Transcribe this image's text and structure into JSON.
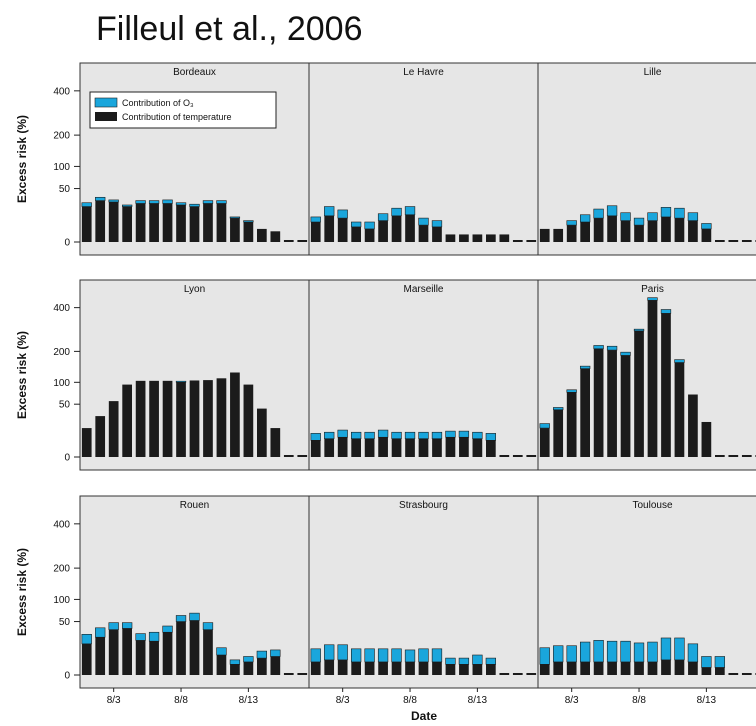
{
  "page": {
    "title": "Filleul et al., 2006"
  },
  "colors": {
    "ozone": "#1aa6dc",
    "temperature": "#1b1b1b",
    "panel_bg": "#e6e6e6",
    "border": "#333333"
  },
  "chart_data": {
    "type": "bar",
    "stacked": true,
    "xlabel": "Date",
    "ylabel": "Excess risk (%)",
    "y_ticks": [
      0,
      50,
      100,
      200,
      400
    ],
    "y_scale": "square-root",
    "ylim": [
      0,
      500
    ],
    "days": [
      "8/1",
      "8/2",
      "8/3",
      "8/4",
      "8/5",
      "8/6",
      "8/7",
      "8/8",
      "8/9",
      "8/10",
      "8/11",
      "8/12",
      "8/13",
      "8/14",
      "8/15",
      "8/16",
      "8/17"
    ],
    "x_tick_labels": [
      "8/3",
      "8/8",
      "8/13"
    ],
    "legend": [
      "Contribution of O₃",
      "Contribution of temperature"
    ],
    "panels": [
      {
        "city": "Bordeaux",
        "temperature": [
          22,
          30,
          28,
          22,
          26,
          26,
          26,
          24,
          22,
          26,
          26,
          10,
          7,
          3,
          2,
          0,
          0
        ],
        "ozone": [
          5,
          5,
          3,
          2,
          4,
          4,
          5,
          3,
          3,
          4,
          4,
          1,
          1,
          0,
          0,
          0,
          0
        ]
      },
      {
        "city": "Le Havre",
        "temperature": [
          7,
          12,
          10,
          4,
          3,
          8,
          12,
          13,
          5,
          4,
          1,
          1,
          1,
          1,
          1,
          0,
          0
        ],
        "ozone": [
          4,
          10,
          8,
          3,
          4,
          6,
          8,
          9,
          5,
          4,
          0,
          0,
          0,
          0,
          0,
          0,
          0
        ]
      },
      {
        "city": "Lille",
        "temperature": [
          3,
          3,
          5,
          7,
          10,
          12,
          8,
          5,
          8,
          11,
          10,
          8,
          3,
          0,
          0,
          0,
          0
        ],
        "ozone": [
          0,
          0,
          3,
          6,
          9,
          11,
          7,
          5,
          7,
          10,
          10,
          7,
          3,
          0,
          0,
          0,
          0
        ]
      },
      {
        "city": "Lyon",
        "temperature": [
          15,
          30,
          56,
          94,
          104,
          104,
          104,
          100,
          105,
          106,
          111,
          128,
          94,
          42,
          15,
          0,
          0
        ],
        "ozone": [
          0,
          0,
          0,
          0,
          0,
          0,
          0,
          3,
          0,
          0,
          0,
          0,
          0,
          0,
          0,
          0,
          0
        ]
      },
      {
        "city": "Marseille",
        "temperature": [
          5,
          6,
          7,
          6,
          6,
          7,
          6,
          6,
          6,
          6,
          7,
          7,
          6,
          5,
          0,
          0,
          0
        ],
        "ozone": [
          5,
          5,
          6,
          5,
          5,
          6,
          5,
          5,
          5,
          5,
          5,
          5,
          5,
          5,
          0,
          0,
          0
        ]
      },
      {
        "city": "Paris",
        "temperature": [
          15,
          40,
          75,
          140,
          210,
          205,
          185,
          285,
          440,
          370,
          160,
          70,
          22,
          0,
          0,
          0,
          0
        ],
        "ozone": [
          5,
          4,
          6,
          8,
          13,
          15,
          12,
          8,
          15,
          20,
          10,
          0,
          0,
          0,
          0,
          0,
          0
        ]
      },
      {
        "city": "Rouen",
        "temperature": [
          17,
          25,
          36,
          38,
          21,
          20,
          32,
          50,
          52,
          36,
          7,
          2,
          3,
          5,
          6,
          0,
          0
        ],
        "ozone": [
          12,
          14,
          12,
          10,
          9,
          12,
          10,
          12,
          15,
          12,
          6,
          2,
          3,
          5,
          5,
          0,
          0
        ]
      },
      {
        "city": "Strasbourg",
        "temperature": [
          3,
          4,
          4,
          3,
          3,
          3,
          3,
          3,
          3,
          3,
          2,
          2,
          2,
          2,
          0,
          0,
          0
        ],
        "ozone": [
          9,
          12,
          12,
          9,
          9,
          9,
          9,
          8,
          9,
          9,
          3,
          3,
          5,
          3,
          0,
          0,
          0
        ]
      },
      {
        "city": "Toulouse",
        "temperature": [
          2,
          3,
          3,
          3,
          3,
          3,
          3,
          3,
          3,
          4,
          4,
          3,
          1,
          1,
          0,
          0,
          0
        ],
        "ozone": [
          11,
          12,
          12,
          16,
          18,
          17,
          17,
          15,
          16,
          20,
          20,
          14,
          5,
          5,
          0,
          0,
          0
        ]
      }
    ]
  }
}
